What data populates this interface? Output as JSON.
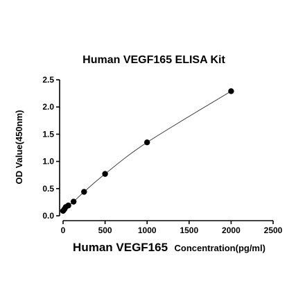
{
  "chart_data": {
    "type": "scatter",
    "title": "Human VEGF165 ELISA Kit",
    "xlabel": "Human VEGF165",
    "xlabel_unit": "Concentration(pg/ml)",
    "ylabel": "OD Value(450nm)",
    "xlim": [
      0,
      2500
    ],
    "ylim": [
      0,
      2.5
    ],
    "x_ticks": [
      "0",
      "500",
      "1000",
      "1500",
      "2000",
      "2500"
    ],
    "y_ticks": [
      "0.0",
      "0.5",
      "1.0",
      "1.5",
      "2.0",
      "2.5"
    ],
    "grid": false,
    "fit_curve": true,
    "series": [
      {
        "x": [
          0,
          15.6,
          31.25,
          62.5,
          125,
          250,
          500,
          1000,
          2000
        ],
        "y": [
          0.09,
          0.12,
          0.16,
          0.19,
          0.26,
          0.44,
          0.77,
          1.35,
          2.29
        ]
      }
    ],
    "colors": {
      "points": "#000000",
      "curve": "#404040",
      "axes": "#000000"
    }
  }
}
